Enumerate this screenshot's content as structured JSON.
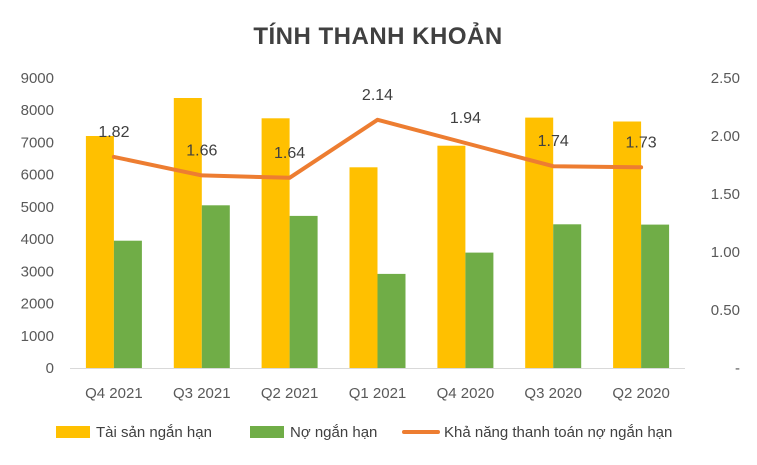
{
  "chart_data": {
    "type": "bar",
    "title": "TÍNH THANH KHOẢN",
    "categories": [
      "Q4 2021",
      "Q3 2021",
      "Q2 2021",
      "Q1 2021",
      "Q4 2020",
      "Q3 2020",
      "Q2 2020"
    ],
    "series": [
      {
        "name": "Tài sản ngắn hạn",
        "type": "bar",
        "axis": "left",
        "color": "#FFC000",
        "values": [
          7200,
          8380,
          7750,
          6230,
          6900,
          7770,
          7650
        ]
      },
      {
        "name": "Nợ ngắn hạn",
        "type": "bar",
        "axis": "left",
        "color": "#70AD47",
        "values": [
          3950,
          5050,
          4720,
          2920,
          3580,
          4460,
          4450
        ]
      },
      {
        "name": "Khả năng thanh toán nợ ngắn hạn",
        "type": "line",
        "axis": "right",
        "color": "#ED7D31",
        "values": [
          1.82,
          1.66,
          1.64,
          2.14,
          1.94,
          1.74,
          1.73
        ],
        "labels": [
          "1.82",
          "1.66",
          "1.64",
          "2.14",
          "1.94",
          "1.74",
          "1.73"
        ]
      }
    ],
    "y_left": {
      "ylim": [
        0,
        9000
      ],
      "ticks": [
        "0",
        "1000",
        "2000",
        "3000",
        "4000",
        "5000",
        "6000",
        "7000",
        "8000",
        "9000"
      ]
    },
    "y_right": {
      "ylim": [
        0,
        2.5
      ],
      "ticks": [
        "-",
        "0.50",
        "1.00",
        "1.50",
        "2.00",
        "2.50"
      ]
    },
    "grid": false,
    "legend_position": "bottom"
  }
}
